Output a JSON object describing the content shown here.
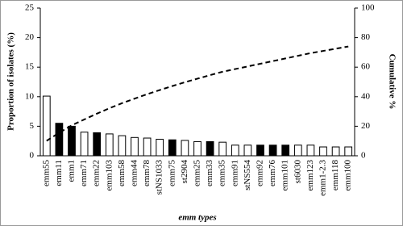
{
  "chart_data": {
    "type": "bar",
    "x_label": "emm types",
    "y_label": "Proportion of isolates (%)",
    "y2_label": "Cumulative %",
    "categories": [
      "emm55",
      "emm11",
      "emm1",
      "emm71",
      "emm22",
      "emm103",
      "emm58",
      "emm44",
      "emm78",
      "stNS1033",
      "emm75",
      "st2904",
      "emm25",
      "emm33",
      "emm35",
      "emm91",
      "stNS554",
      "emm92",
      "emm76",
      "emm101",
      "st6030",
      "emm123",
      "emm1-2.3",
      "emm118",
      "emm100"
    ],
    "series": [
      {
        "type": "bar",
        "values": [
          10.1,
          5.5,
          5.0,
          4.0,
          3.9,
          3.7,
          3.4,
          3.1,
          3.0,
          2.8,
          2.7,
          2.6,
          2.4,
          2.4,
          2.3,
          1.8,
          1.8,
          1.8,
          1.8,
          1.8,
          1.8,
          1.8,
          1.5,
          1.5,
          1.5
        ],
        "colors": [
          "#ffffff",
          "#000000",
          "#000000",
          "#ffffff",
          "#000000",
          "#ffffff",
          "#ffffff",
          "#ffffff",
          "#ffffff",
          "#ffffff",
          "#000000",
          "#ffffff",
          "#ffffff",
          "#000000",
          "#ffffff",
          "#ffffff",
          "#ffffff",
          "#000000",
          "#000000",
          "#000000",
          "#ffffff",
          "#ffffff",
          "#ffffff",
          "#ffffff",
          "#ffffff"
        ]
      },
      {
        "type": "line",
        "axis": "y2",
        "color": "#000000",
        "dashed": true,
        "values": [
          10.1,
          15.6,
          20.6,
          24.6,
          28.5,
          32.2,
          35.6,
          38.7,
          41.7,
          44.5,
          47.2,
          49.8,
          52.2,
          54.6,
          56.9,
          58.7,
          60.5,
          62.3,
          64.1,
          65.9,
          67.7,
          69.5,
          71.0,
          72.5,
          74.0
        ]
      }
    ],
    "ylim": [
      0,
      25
    ],
    "yticks": [
      0,
      5,
      10,
      15,
      20,
      25
    ],
    "y2lim": [
      0,
      100
    ],
    "y2ticks": [
      0,
      20,
      40,
      60,
      80,
      100
    ]
  }
}
